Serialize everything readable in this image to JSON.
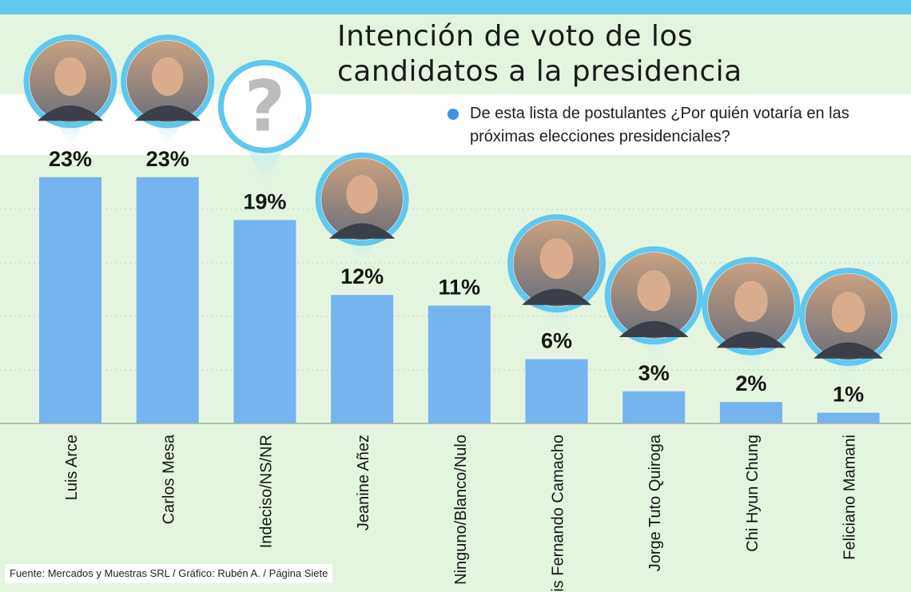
{
  "chart_data": {
    "type": "bar",
    "title": "Intención de voto de los candidatos a la presidencia",
    "subtitle": "De esta lista de postulantes ¿Por quién votaría en las próximas elecciones presidenciales?",
    "categories": [
      "Luis Arce",
      "Carlos Mesa",
      "Indeciso/NS/NR",
      "Jeanine Añez",
      "Ninguno/Blanco/Nulo",
      "Luis Fernando Camacho",
      "Jorge Tuto Quiroga",
      "Chi Hyun Chung",
      "Feliciano Mamani"
    ],
    "values": [
      23,
      23,
      19,
      12,
      11,
      6,
      3,
      2,
      1
    ],
    "value_labels": [
      "23%",
      "23%",
      "19%",
      "12%",
      "11%",
      "6%",
      "3%",
      "2%",
      "1%"
    ],
    "photos": [
      "candidate-photo",
      "candidate-photo",
      "question-mark",
      "candidate-photo",
      "none",
      "candidate-photo",
      "candidate-photo",
      "candidate-photo",
      "candidate-photo"
    ],
    "ylim": [
      0,
      25
    ],
    "grid": "dashed horizontal",
    "legend": "none",
    "colors": {
      "bar": "#75b4ee",
      "accent": "#5ec8ee",
      "background": "#e4f5df",
      "bullet": "#3f93e6"
    }
  },
  "source": "Fuente: Mercados y Muestras SRL / Gráfico: Rubén A. / Página Siete",
  "question_mark": "?"
}
